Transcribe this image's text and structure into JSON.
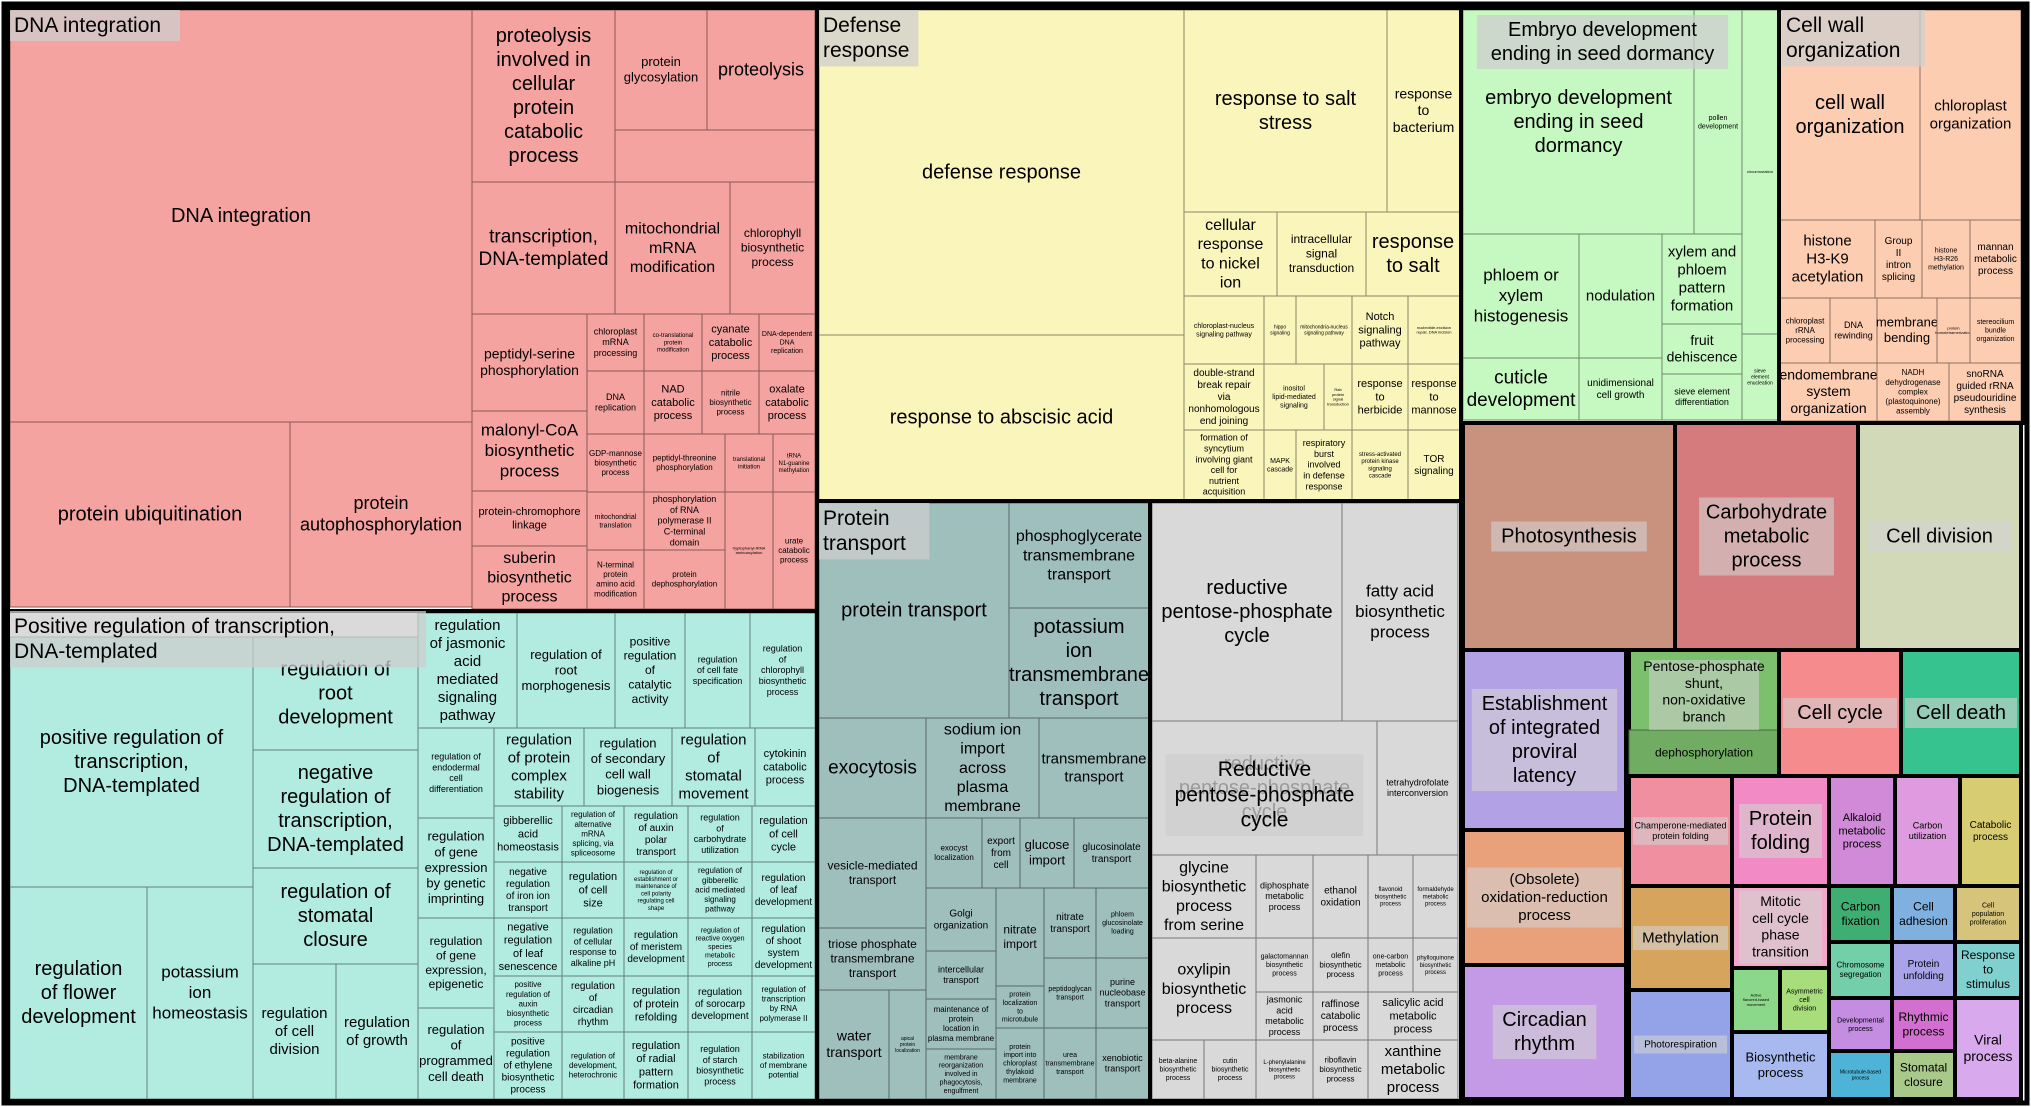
{
  "chart_data": {
    "type": "treemap",
    "groups": [
      {
        "name": "DNA integration",
        "color": "#f4a3a0",
        "terms": [
          "DNA integration",
          "protein ubiquitination",
          "protein autophosphorylation",
          "proteolysis involved in cellular protein catabolic process",
          "protein glycosylation",
          "proteolysis",
          "transcription, DNA-templated",
          "mitochondrial mRNA modification",
          "chlorophyll biosynthetic process",
          "peptidyl-serine phosphorylation",
          "chloroplast mRNA processing",
          "co-translational protein modification",
          "cyanate catabolic process",
          "DNA-dependent DNA replication",
          "malonyl-CoA biosynthetic process",
          "DNA replication",
          "NAD catabolic process",
          "nitrile biosynthetic process",
          "oxalate catabolic process",
          "protein-chromophore linkage",
          "GDP-mannose biosynthetic process",
          "peptidyl-threonine phosphorylation",
          "translational initiation",
          "tRNA N1-guanine methylation",
          "suberin biosynthetic process",
          "mitochondrial translation",
          "phosphorylation of RNA polymerase II C-terminal domain",
          "N-terminal protein amino acid modification",
          "protein dephosphorylation",
          "tryptophanyl-tRNA aminoacylation",
          "urate catabolic process"
        ]
      },
      {
        "name": "Positive regulation of transcription, DNA-templated",
        "color": "#b2ebe0",
        "terms": [
          "positive regulation of transcription, DNA-templated",
          "regulation of root development",
          "negative regulation of transcription, DNA-templated",
          "regulation of flower development",
          "potassium ion homeostasis",
          "regulation of stomatal closure",
          "regulation of cell division",
          "regulation of growth",
          "regulation of jasmonic acid mediated signaling pathway",
          "regulation of root morphogenesis",
          "positive regulation of catalytic activity",
          "regulation of cell fate specification",
          "regulation of chlorophyll biosynthetic process",
          "regulation of endodermal cell differentiation",
          "regulation of protein complex stability",
          "regulation of secondary cell wall biogenesis",
          "regulation of stomatal movement",
          "cytokinin catabolic process",
          "regulation of gene expression by genetic imprinting",
          "gibberellic acid homeostasis",
          "regulation of alternative mRNA splicing, via spliceosome",
          "regulation of auxin polar transport",
          "regulation of carbohydrate utilization",
          "regulation of cell cycle",
          "negative regulation of iron ion transport",
          "regulation of cell size",
          "regulation of establishment or maintenance of cell polarity regulating cell shape",
          "regulation of gibberellic acid mediated signaling pathway",
          "regulation of leaf development",
          "regulation of gene expression, epigenetic",
          "negative regulation of leaf senescence",
          "regulation of cellular response to alkaline pH",
          "regulation of meristem development",
          "regulation of reactive oxygen species metabolic process",
          "regulation of shoot system development",
          "positive regulation of auxin biosynthetic process",
          "regulation of circadian rhythm",
          "regulation of protein refolding",
          "regulation of sorocarp development",
          "regulation of transcription by RNA polymerase II",
          "regulation of programmed cell death",
          "positive regulation of ethylene biosynthetic process",
          "regulation of development, heterochronic",
          "regulation of radial pattern formation",
          "regulation of starch biosynthetic process",
          "stabilization of membrane potential"
        ]
      },
      {
        "name": "Defense response",
        "color": "#faf5bb",
        "terms": [
          "defense response",
          "response to abscisic acid",
          "response to salt stress",
          "response to bacterium",
          "cellular response to nickel ion",
          "intracellular signal transduction",
          "response to salt",
          "chloroplast-nucleus signaling pathway",
          "hippo signaling",
          "mitochondria-nucleus signaling pathway",
          "Notch signaling pathway",
          "nucleotide-excision repair, DNA incision",
          "double-strand break repair via nonhomologous end joining",
          "inositol lipid-mediated signaling",
          "Rab protein signal transduction",
          "response to herbicide",
          "response to mannose",
          "formation of syncytium involving giant cell for nutrient acquisition",
          "MAPK cascade",
          "respiratory burst involved in defense response",
          "stress-activated protein kinase signaling cascade",
          "TOR signaling"
        ]
      },
      {
        "name": "Embryo development ending in seed dormancy",
        "color": "#c6f8c1",
        "terms": [
          "embryo development ending in seed dormancy",
          "pollen development",
          "phloem or xylem histogenesis",
          "nodulation",
          "xylem and phloem pattern formation",
          "circumnutation",
          "cuticle development",
          "unidimensional cell growth",
          "fruit dehiscence",
          "sieve element enucleation",
          "sieve element differentiation"
        ]
      },
      {
        "name": "Cell wall organization",
        "color": "#fdcdb2",
        "terms": [
          "cell wall organization",
          "chloroplast organization",
          "histone H3-K9 acetylation",
          "Group II intron splicing",
          "histone H3-R26 methylation",
          "mannan metabolic process",
          "chloroplast rRNA processing",
          "DNA rewinding",
          "membrane bending",
          "protein homotetramerization",
          "stereocilium bundle organization",
          "endomembrane system organization",
          "NADH dehydrogenase complex (plastoquinone) assembly",
          "snoRNA guided rRNA pseudouridine synthesis"
        ]
      },
      {
        "name": "Protein transport",
        "color": "#9fbfbd",
        "terms": [
          "protein transport",
          "phosphoglycerate transmembrane transport",
          "potassium ion transmembrane transport",
          "exocytosis",
          "sodium ion import across plasma membrane",
          "transmembrane transport",
          "vesicle-mediated transport",
          "exocyst localization",
          "export from cell",
          "glucose import",
          "glucosinolate transport",
          "triose phosphate transmembrane transport",
          "Golgi organization",
          "nitrate import",
          "nitrate transport",
          "phloem glucosinolate loading",
          "intercellular transport",
          "peptidoglycan transport",
          "protein localization to microtubule",
          "purine nucleobase transport",
          "water transport",
          "apical protein localization",
          "maintenance of protein location in plasma membrane",
          "membrane reorganization involved in phagocytosis, engulfment",
          "protein import into chloroplast thylakoid membrane",
          "urea transmembrane transport",
          "xenobiotic transport"
        ]
      },
      {
        "name": "Reductive pentose-phosphate cycle",
        "color": "#d9d9d9",
        "terms": [
          "reductive pentose-phosphate cycle",
          "fatty acid biosynthetic process",
          "tetrahydrofolate interconversion",
          "glycine biosynthetic process from serine",
          "diphosphate metabolic process",
          "ethanol oxidation",
          "flavonoid biosynthetic process",
          "formaldehyde metabolic process",
          "oxylipin biosynthetic process",
          "galactomannan biosynthetic process",
          "olefin biosynthetic process",
          "one-carbon metabolic process",
          "phylloquinone biosynthetic process",
          "jasmonic acid metabolic process",
          "raffinose catabolic process",
          "salicylic acid metabolic process",
          "beta-alanine biosynthetic process",
          "cutin biosynthetic process",
          "L-phenylalanine biosynthetic process",
          "riboflavin biosynthetic process",
          "xanthine metabolic process"
        ]
      },
      {
        "name": "Photosynthesis",
        "color": "#c9927f",
        "terms": []
      },
      {
        "name": "Carbohydrate metabolic process",
        "color": "#d67b7d",
        "terms": []
      },
      {
        "name": "Cell division",
        "color": "#d1d9b8",
        "terms": []
      },
      {
        "name": "Establishment of integrated proviral latency",
        "color": "#b3a1e6",
        "terms": []
      },
      {
        "name": "Pentose-phosphate shunt, non-oxidative branch",
        "color": "#7cbf6d",
        "terms": [
          "dephosphorylation"
        ]
      },
      {
        "name": "Cell cycle",
        "color": "#f58b8d",
        "terms": []
      },
      {
        "name": "Cell death",
        "color": "#37c38f",
        "terms": []
      },
      {
        "name": "(Obsolete) oxidation-reduction process",
        "color": "#e8a17a",
        "terms": []
      },
      {
        "name": "Circadian rhythm",
        "color": "#c499e6",
        "terms": []
      },
      {
        "name": "Champerone-mediated protein folding",
        "color": "#ef8fa0",
        "terms": []
      },
      {
        "name": "Protein folding",
        "color": "#f28ac6",
        "terms": []
      },
      {
        "name": "Alkaloid metabolic process",
        "color": "#d18ad8",
        "terms": [
          "alkaloid metabolic process"
        ]
      },
      {
        "name": "Carbon utilization",
        "color": "#df9bdf",
        "terms": []
      },
      {
        "name": "Catabolic process",
        "color": "#d8cc72",
        "terms": []
      },
      {
        "name": "Methylation",
        "color": "#d6a45c",
        "terms": []
      },
      {
        "name": "Mitotic cell cycle phase transition",
        "color": "#f3a7c9",
        "terms": []
      },
      {
        "name": "Carbon fixation",
        "color": "#3fae72",
        "terms": []
      },
      {
        "name": "Cell adhesion",
        "color": "#7fb0e0",
        "terms": []
      },
      {
        "name": "Cell population proliferation",
        "color": "#d7c47b",
        "terms": []
      },
      {
        "name": "Photorespiration",
        "color": "#94a3e8",
        "terms": []
      },
      {
        "name": "Chromosome segregation",
        "color": "#72cfa8",
        "terms": []
      },
      {
        "name": "Protein unfolding",
        "color": "#a9a3ea",
        "terms": []
      },
      {
        "name": "Response to stimulus",
        "color": "#7fd0cf",
        "terms": []
      },
      {
        "name": "Active flavored-based movement",
        "color": "#8bd88a",
        "terms": []
      },
      {
        "name": "Asymmetric cell division",
        "color": "#a8dd7c",
        "terms": []
      },
      {
        "name": "Developmental process",
        "color": "#c48de2",
        "terms": []
      },
      {
        "name": "Rhythmic process",
        "color": "#d26fd0",
        "terms": []
      },
      {
        "name": "Biosynthetic process",
        "color": "#a7b9ee",
        "terms": []
      },
      {
        "name": "Microtubule-based process",
        "color": "#4db4d8",
        "terms": []
      },
      {
        "name": "Stomatal closure",
        "color": "#a8c989",
        "terms": []
      },
      {
        "name": "Viral process",
        "color": "#d8a9ec",
        "terms": []
      }
    ]
  }
}
